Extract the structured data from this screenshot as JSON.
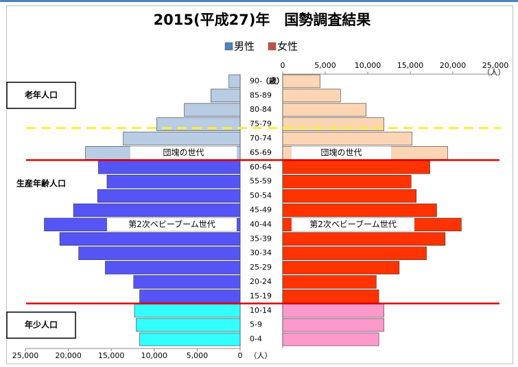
{
  "chart_data": {
    "type": "pyramid",
    "title": "2015(平成27)年　国勢調査結果",
    "unit_label": "（人）",
    "age_unit": "（歳）",
    "categories": [
      "90-",
      "85-89",
      "80-84",
      "75-79",
      "70-74",
      "65-69",
      "60-64",
      "55-59",
      "50-54",
      "45-49",
      "40-44",
      "35-39",
      "30-34",
      "25-29",
      "20-24",
      "15-19",
      "10-14",
      "5-9",
      "0-4"
    ],
    "series": [
      {
        "name": "男性",
        "color": "#4f81bd",
        "colors": [
          "#b8cce4",
          "#b8cce4",
          "#b8cce4",
          "#b8cce4",
          "#b8cce4",
          "#b8cce4",
          "#5555f5",
          "#5555f5",
          "#5555f5",
          "#5555f5",
          "#5555f5",
          "#5555f5",
          "#5555f5",
          "#5555f5",
          "#5555f5",
          "#5555f5",
          "#33ffff",
          "#33ffff",
          "#33ffff"
        ],
        "values": [
          1300,
          3400,
          6500,
          9700,
          13600,
          18000,
          16500,
          15500,
          16600,
          19400,
          22800,
          21000,
          18800,
          15700,
          12400,
          11700,
          12300,
          12100,
          11700
        ]
      },
      {
        "name": "女性",
        "color": "#c0504d",
        "colors": [
          "#fcd5b4",
          "#fcd5b4",
          "#fcd5b4",
          "#fcd5b4",
          "#fcd5b4",
          "#fcd5b4",
          "#ff3300",
          "#ff3300",
          "#ff3300",
          "#ff3300",
          "#ff3300",
          "#ff3300",
          "#ff3300",
          "#ff3300",
          "#ff3300",
          "#ff3300",
          "#ff99cc",
          "#ff99cc",
          "#ff99cc"
        ],
        "values": [
          4400,
          6800,
          9800,
          11900,
          15200,
          19400,
          17300,
          15100,
          15700,
          18100,
          21000,
          19100,
          16900,
          13700,
          11000,
          11300,
          11900,
          11900,
          11300
        ]
      }
    ],
    "xlim": [
      0,
      25000
    ],
    "xticks": [
      0,
      {
        "value": 5000,
        "label": "5,000"
      },
      {
        "value": 10000,
        "label": "10,000"
      },
      {
        "value": 15000,
        "label": "15,000"
      },
      {
        "value": 20000,
        "label": "20,000"
      },
      {
        "value": 25000,
        "label": "25,000"
      }
    ],
    "groups": [
      "老年人口",
      "生産年齢人口",
      "年少人口"
    ],
    "generations": [
      "団塊の世代",
      "第2次ベビーブーム世代"
    ]
  }
}
